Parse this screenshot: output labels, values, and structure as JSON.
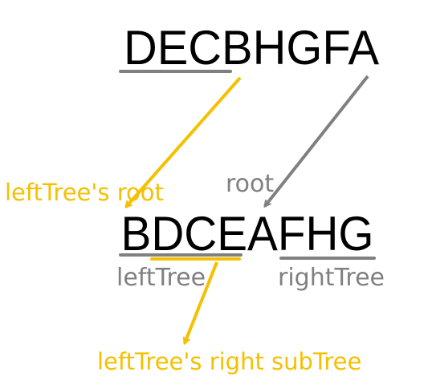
{
  "diagram": {
    "postorder_sequence": "DECBHGFA",
    "inorder_sequence": "BDCEAFHG",
    "labels": {
      "root": "root",
      "left_tree_root": "leftTree's root",
      "left_tree": "leftTree",
      "right_tree": "rightTree",
      "left_tree_right_subtree": "leftTree's right subTree"
    },
    "colors": {
      "text": "#000000",
      "gray": "#808080",
      "gold": "#f5c000"
    }
  }
}
